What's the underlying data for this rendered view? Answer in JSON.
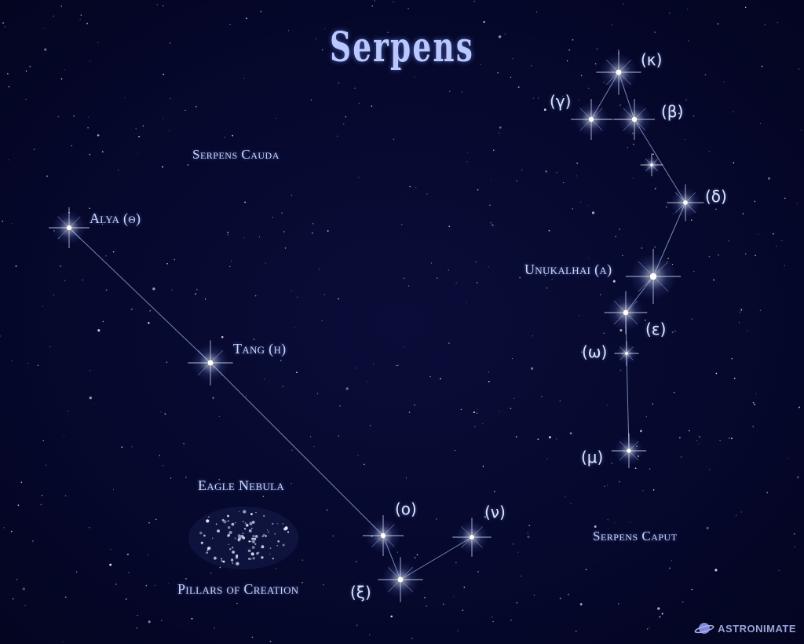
{
  "title": "Serpens",
  "regions": {
    "cauda": "Serpens Cauda",
    "caput": "Serpens Caput"
  },
  "nebula": {
    "name": "Eagle Nebula",
    "subtitle": "Pillars of Creation"
  },
  "stars": {
    "alya": "Alya (θ)",
    "tang": "Tang (η)",
    "omicron": "(ο)",
    "nu": "(ν)",
    "xi": "(ξ)",
    "kappa": "(κ)",
    "gamma": "(γ)",
    "beta": "(β)",
    "delta": "(δ)",
    "alpha": "Unukalhai (α)",
    "epsilon": "(ε)",
    "omega": "(ω)",
    "mu": "(μ)"
  },
  "logo": {
    "text": "ASTRONIMATE",
    "icon": "planet-icon"
  },
  "colors": {
    "background": "#06082a",
    "label": "#c9d6ff",
    "star": "#ffffff",
    "line": "#9fb0e0"
  }
}
